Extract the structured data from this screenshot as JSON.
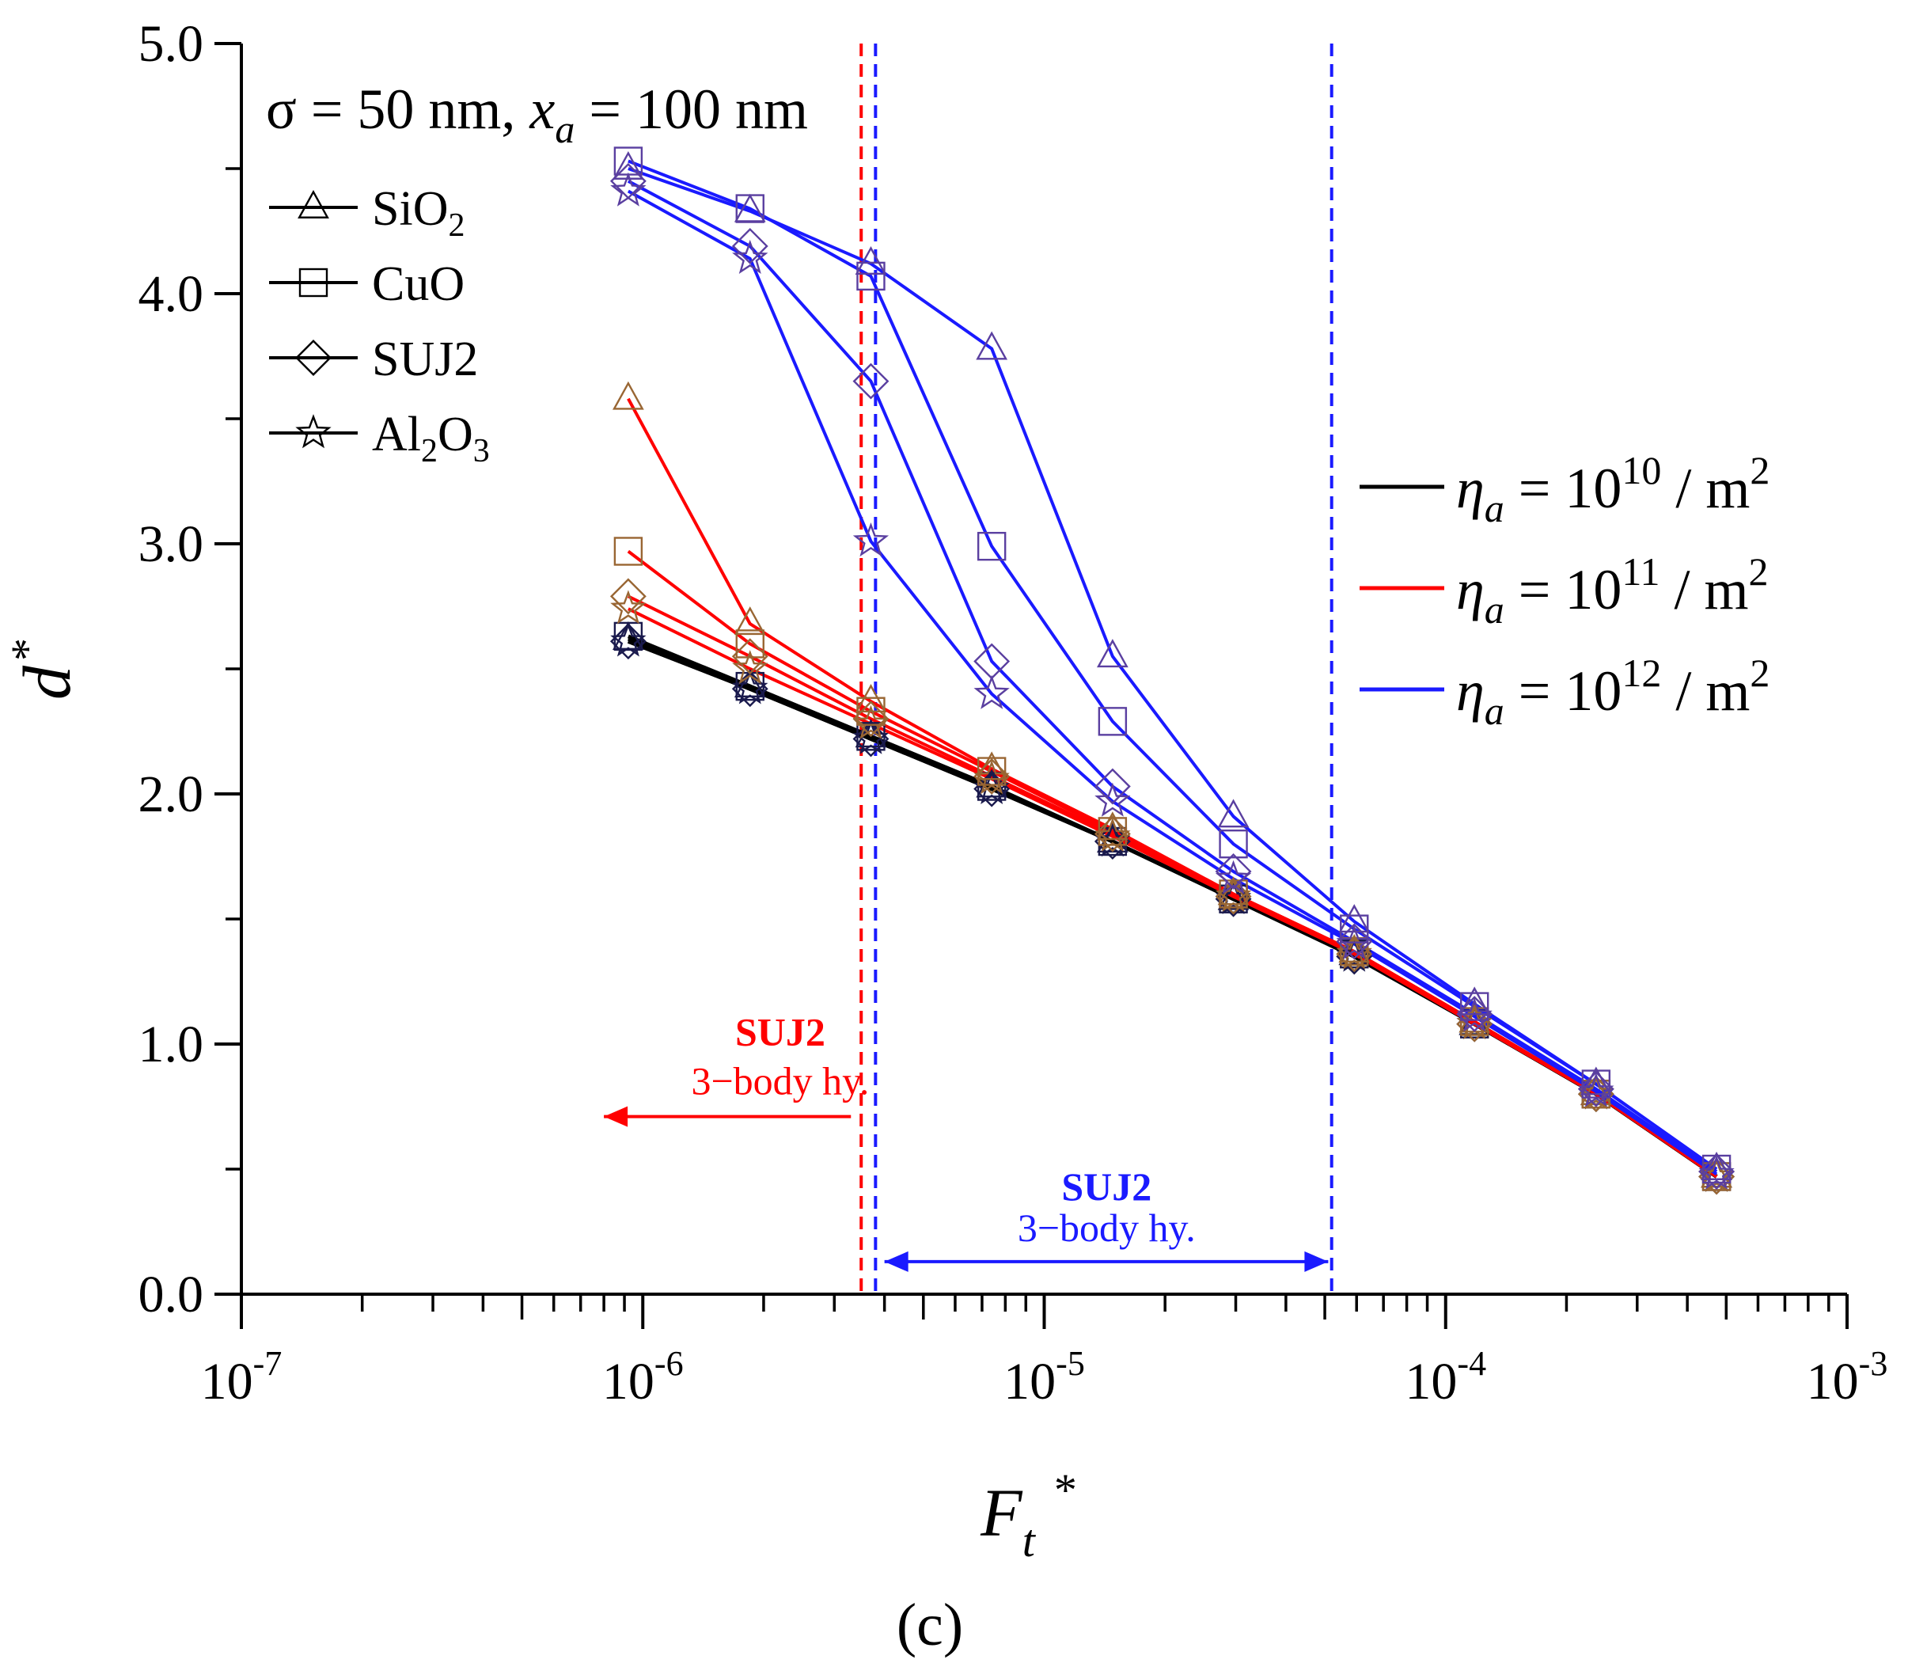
{
  "chart_data": {
    "type": "line",
    "title": "",
    "panel_label": "(c)",
    "xlabel": "F",
    "xlabel_sub": "t",
    "xlabel_sup": "*",
    "ylabel": "d",
    "ylabel_sup": "*",
    "xscale": "log",
    "xlim": [
      1e-07,
      0.001
    ],
    "ylim": [
      0,
      5
    ],
    "x_tick_values": [
      1e-07,
      1e-06,
      1e-05,
      0.0001,
      0.001
    ],
    "x_tick_labels": [
      {
        "base": "10",
        "exp": "-7"
      },
      {
        "base": "10",
        "exp": "-6"
      },
      {
        "base": "10",
        "exp": "-5"
      },
      {
        "base": "10",
        "exp": "-4"
      },
      {
        "base": "10",
        "exp": "-3"
      }
    ],
    "y_ticks": [
      {
        "value": 0,
        "label": "0.0"
      },
      {
        "value": 1,
        "label": "1.0"
      },
      {
        "value": 2,
        "label": "2.0"
      },
      {
        "value": 3,
        "label": "3.0"
      },
      {
        "value": 4,
        "label": "4.0"
      },
      {
        "value": 5,
        "label": "5.0"
      }
    ],
    "condition": {
      "prefix": "σ = 50 nm, ",
      "var": "x",
      "var_sub": "a",
      "suffix": " = 100 nm"
    },
    "colors": {
      "eta_1e10": "#000000",
      "eta_1e11": "#ff0000",
      "eta_1e12": "#1a1aff",
      "marker_1e10": "#1a1a4d",
      "marker_1e11": "#996633",
      "marker_1e12": "#5a3fa0",
      "axis": "#000000"
    },
    "marker_legend": [
      {
        "marker": "triangle",
        "label": "SiO",
        "sub": "2",
        "suffix": ""
      },
      {
        "marker": "square",
        "label": "CuO",
        "sub": "",
        "suffix": ""
      },
      {
        "marker": "diamond",
        "label": "SUJ2",
        "sub": "",
        "suffix": ""
      },
      {
        "marker": "star",
        "label": "Al",
        "sub": "2",
        "suffix": "O",
        "sub2": "3"
      }
    ],
    "line_legend": [
      {
        "key": "eta_1e10",
        "symbol": "η",
        "sub": "a",
        "mid": " = 10",
        "exp": "10",
        "unit": " / m",
        "unit_exp": "2"
      },
      {
        "key": "eta_1e11",
        "symbol": "η",
        "sub": "a",
        "mid": " = 10",
        "exp": "11",
        "unit": " / m",
        "unit_exp": "2"
      },
      {
        "key": "eta_1e12",
        "symbol": "η",
        "sub": "a",
        "mid": " = 10",
        "exp": "12",
        "unit": " / m",
        "unit_exp": "2"
      }
    ],
    "x": [
      9.2e-07,
      1.85e-06,
      3.7e-06,
      7.4e-06,
      1.48e-05,
      2.96e-05,
      5.92e-05,
      0.000118,
      0.000237,
      0.000473
    ],
    "series": [
      {
        "name": "SiO2, ηa = 10^10 / m^2",
        "group": "eta_1e10",
        "marker": "triangle",
        "values": [
          2.62,
          2.43,
          2.23,
          2.03,
          1.81,
          1.58,
          1.36,
          1.08,
          0.8,
          0.47
        ]
      },
      {
        "name": "CuO, ηa = 10^10 / m^2",
        "group": "eta_1e10",
        "marker": "square",
        "values": [
          2.63,
          2.43,
          2.23,
          2.03,
          1.81,
          1.58,
          1.36,
          1.08,
          0.8,
          0.47
        ]
      },
      {
        "name": "SUJ2, ηa = 10^10 / m^2",
        "group": "eta_1e10",
        "marker": "diamond",
        "values": [
          2.61,
          2.42,
          2.22,
          2.02,
          1.81,
          1.58,
          1.35,
          1.08,
          0.8,
          0.47
        ]
      },
      {
        "name": "Al2O3, ηa = 10^10 / m^2",
        "group": "eta_1e10",
        "marker": "star",
        "values": [
          2.61,
          2.42,
          2.22,
          2.02,
          1.81,
          1.58,
          1.35,
          1.08,
          0.8,
          0.47
        ]
      },
      {
        "name": "SiO2, ηa = 10^11 / m^2",
        "group": "eta_1e11",
        "marker": "triangle",
        "values": [
          3.58,
          2.68,
          2.37,
          2.1,
          1.86,
          1.6,
          1.37,
          1.09,
          0.8,
          0.47
        ]
      },
      {
        "name": "CuO, ηa = 10^11 / m^2",
        "group": "eta_1e11",
        "marker": "square",
        "values": [
          2.97,
          2.6,
          2.33,
          2.09,
          1.85,
          1.6,
          1.37,
          1.09,
          0.8,
          0.47
        ]
      },
      {
        "name": "SUJ2, ηa = 10^11 / m^2",
        "group": "eta_1e11",
        "marker": "diamond",
        "values": [
          2.79,
          2.55,
          2.3,
          2.07,
          1.84,
          1.59,
          1.36,
          1.08,
          0.8,
          0.47
        ]
      },
      {
        "name": "Al2O3, ηa = 10^11 / m^2",
        "group": "eta_1e11",
        "marker": "star",
        "values": [
          2.74,
          2.5,
          2.28,
          2.06,
          1.83,
          1.59,
          1.36,
          1.08,
          0.8,
          0.47
        ]
      },
      {
        "name": "SiO2, ηa = 10^12 / m^2",
        "group": "eta_1e12",
        "marker": "triangle",
        "values": [
          4.5,
          4.33,
          4.12,
          3.78,
          2.55,
          1.91,
          1.49,
          1.16,
          0.84,
          0.5
        ]
      },
      {
        "name": "CuO, ηa = 10^12 / m^2",
        "group": "eta_1e12",
        "marker": "square",
        "values": [
          4.53,
          4.34,
          4.07,
          2.99,
          2.29,
          1.8,
          1.46,
          1.15,
          0.84,
          0.5
        ]
      },
      {
        "name": "SUJ2, ηa = 10^12 / m^2",
        "group": "eta_1e12",
        "marker": "diamond",
        "values": [
          4.45,
          4.19,
          3.65,
          2.53,
          2.03,
          1.69,
          1.41,
          1.12,
          0.82,
          0.49
        ]
      },
      {
        "name": "Al2O3, ηa = 10^12 / m^2",
        "group": "eta_1e12",
        "marker": "star",
        "values": [
          4.41,
          4.14,
          3.01,
          2.4,
          1.97,
          1.66,
          1.4,
          1.11,
          0.81,
          0.48
        ]
      }
    ],
    "vlines": [
      {
        "x": 3.5e-06,
        "color": "#ff0000",
        "style": "dashed"
      },
      {
        "x": 3.8e-06,
        "color": "#1a1aff",
        "style": "dashed"
      },
      {
        "x": 5.2e-05,
        "color": "#1a1aff",
        "style": "dashed"
      }
    ],
    "annotations": [
      {
        "title": "SUJ2",
        "text": "3−body hy.",
        "color": "#ff0000",
        "arrow": "left",
        "x_start": 3.3e-06,
        "x_end": 8e-07,
        "y": 0.71,
        "text_x": 2.2e-06
      },
      {
        "title": "SUJ2",
        "text": "3−body hy.",
        "color": "#1a1aff",
        "arrow": "both",
        "x_start": 4e-06,
        "x_end": 5.1e-05,
        "y": 0.13,
        "text_x": 1.43e-05
      }
    ]
  }
}
